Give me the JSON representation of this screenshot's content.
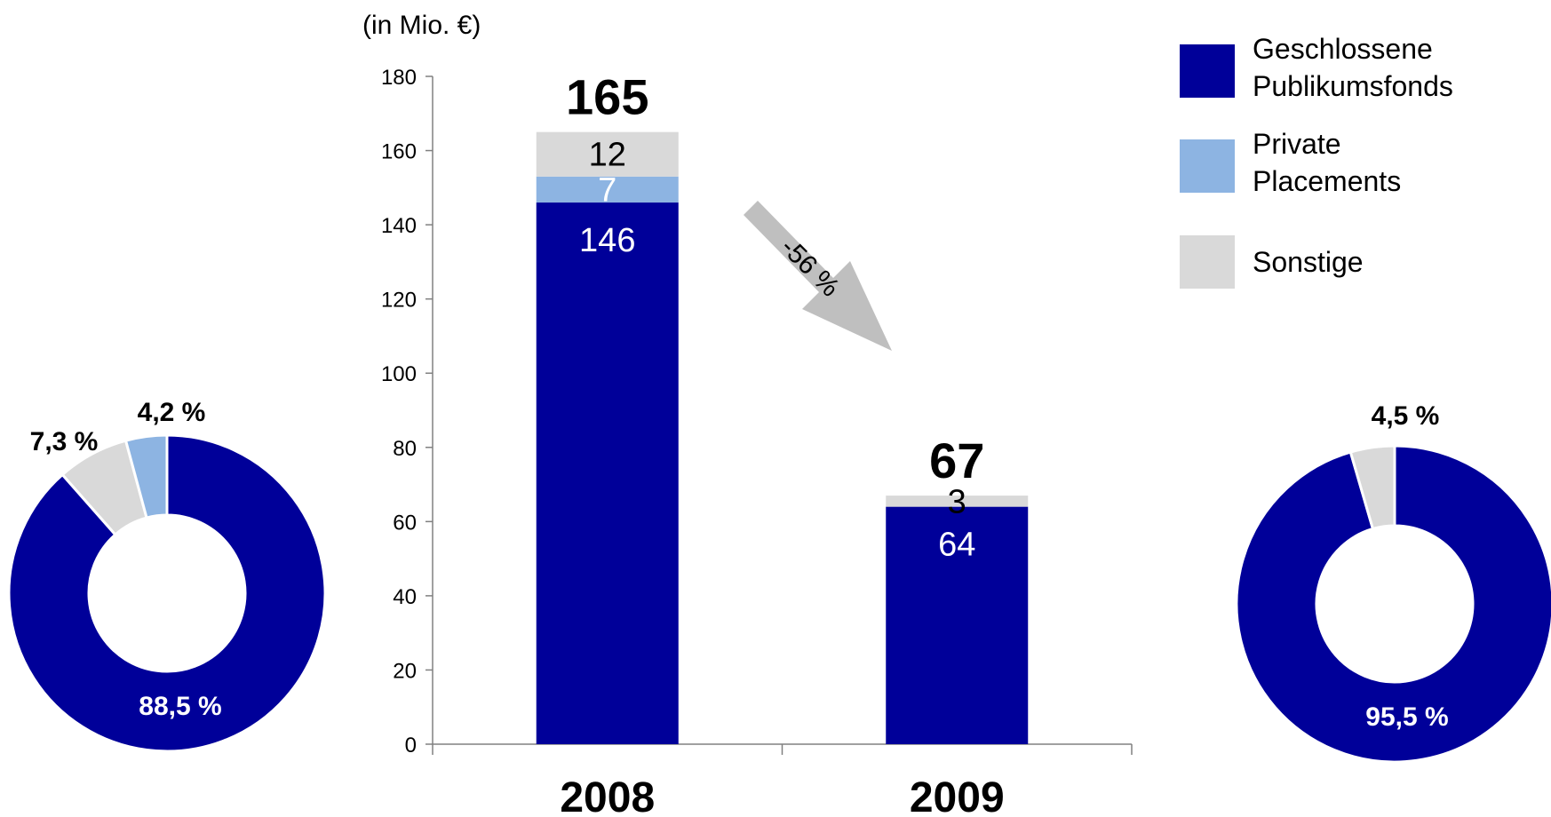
{
  "colors": {
    "geschlossene": "#000099",
    "private": "#8db4e2",
    "sonstige": "#d9d9d9",
    "arrow": "#bfbfbf",
    "axis": "#808080",
    "text": "#000000",
    "label_on_dark": "#ffffff"
  },
  "chart_data": [
    {
      "type": "bar",
      "stacked": true,
      "unit_label": "(in Mio. €)",
      "categories": [
        "2008",
        "2009"
      ],
      "ylim": [
        0,
        180
      ],
      "yticks": [
        0,
        20,
        40,
        60,
        80,
        100,
        120,
        140,
        160,
        180
      ],
      "grid": false,
      "legend_position": "top-right",
      "series": [
        {
          "name": "Geschlossene Publikumsfonds",
          "legend_lines": [
            "Geschlossene",
            "Publikumsfonds"
          ],
          "color_key": "geschlossene",
          "values": [
            146,
            64
          ],
          "labels": [
            "146",
            "64"
          ]
        },
        {
          "name": "Private Placements",
          "legend_lines": [
            "Private",
            "Placements"
          ],
          "color_key": "private",
          "values": [
            7,
            0
          ],
          "labels": [
            "7",
            ""
          ]
        },
        {
          "name": "Sonstige",
          "legend_lines": [
            "Sonstige"
          ],
          "color_key": "sonstige",
          "values": [
            12,
            3
          ],
          "labels": [
            "12",
            "3"
          ]
        }
      ],
      "totals": [
        "165",
        "67"
      ],
      "change_annotation": "-56 %"
    },
    {
      "type": "pie",
      "variant": "donut",
      "category": "2008",
      "slices": [
        {
          "series": "Geschlossene Publikumsfonds",
          "value": 88.5,
          "label": "88,5 %",
          "color_key": "geschlossene"
        },
        {
          "series": "Sonstige",
          "value": 7.3,
          "label": "7,3 %",
          "color_key": "sonstige"
        },
        {
          "series": "Private Placements",
          "value": 4.2,
          "label": "4,2 %",
          "color_key": "private"
        }
      ]
    },
    {
      "type": "pie",
      "variant": "donut",
      "category": "2009",
      "slices": [
        {
          "series": "Geschlossene Publikumsfonds",
          "value": 95.5,
          "label": "95,5 %",
          "color_key": "geschlossene"
        },
        {
          "series": "Sonstige",
          "value": 4.5,
          "label": "4,5 %",
          "color_key": "sonstige"
        }
      ]
    }
  ]
}
